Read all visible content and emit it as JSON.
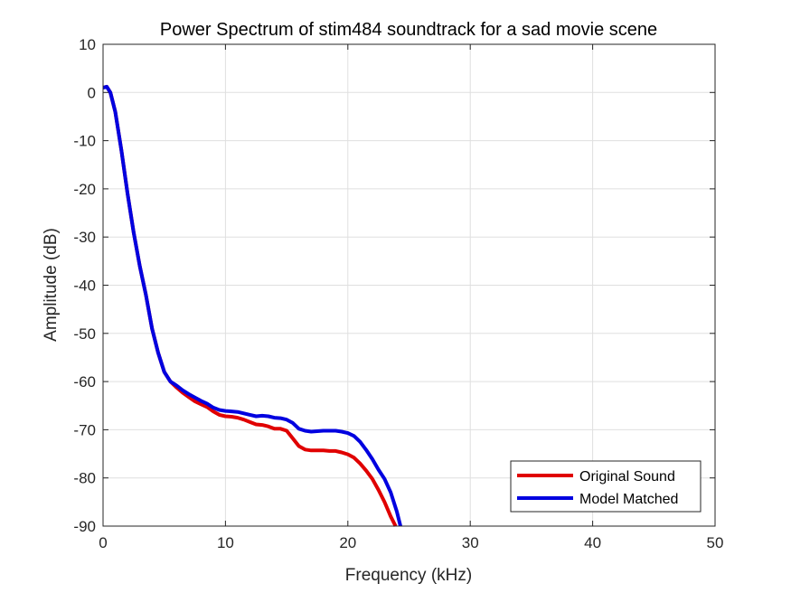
{
  "chart_data": {
    "type": "line",
    "title": "Power Spectrum of stim484 soundtrack for a sad movie scene",
    "xlabel": "Frequency (kHz)",
    "ylabel": "Amplitude (dB)",
    "xlim": [
      0,
      50
    ],
    "ylim": [
      -90,
      10
    ],
    "xticks": [
      0,
      10,
      20,
      30,
      40,
      50
    ],
    "yticks": [
      10,
      0,
      -10,
      -20,
      -30,
      -40,
      -50,
      -60,
      -70,
      -80,
      -90
    ],
    "grid": true,
    "legend_position": "bottom-right",
    "series": [
      {
        "name": "Original Sound",
        "color": "#e00000",
        "x": [
          0,
          0.3,
          0.6,
          1.0,
          1.5,
          2.0,
          2.5,
          3.0,
          3.5,
          4.0,
          4.5,
          5.0,
          5.5,
          6.0,
          6.5,
          7.0,
          7.5,
          8.0,
          8.5,
          9.0,
          9.5,
          10.0,
          10.5,
          11.0,
          11.5,
          12.0,
          12.5,
          13.0,
          13.5,
          14.0,
          14.5,
          15.0,
          15.5,
          16.0,
          16.5,
          17.0,
          17.5,
          18.0,
          18.5,
          19.0,
          19.5,
          20.0,
          20.5,
          21.0,
          21.5,
          22.0,
          22.5,
          23.0,
          23.5,
          23.9
        ],
        "y": [
          1.0,
          1.2,
          0,
          -4,
          -12,
          -21,
          -29,
          -36,
          -42,
          -49,
          -54,
          -58,
          -60,
          -61.2,
          -62.3,
          -63.2,
          -64.1,
          -64.7,
          -65.3,
          -66.2,
          -66.9,
          -67.2,
          -67.3,
          -67.5,
          -67.9,
          -68.4,
          -68.9,
          -69.0,
          -69.3,
          -69.8,
          -69.8,
          -70.2,
          -71.8,
          -73.4,
          -74.1,
          -74.3,
          -74.3,
          -74.3,
          -74.4,
          -74.4,
          -74.7,
          -75.1,
          -75.8,
          -77.0,
          -78.5,
          -80.2,
          -82.5,
          -85.0,
          -88.0,
          -90.0
        ]
      },
      {
        "name": "Model Matched",
        "color": "#0000e0",
        "x": [
          0,
          0.3,
          0.6,
          1.0,
          1.5,
          2.0,
          2.5,
          3.0,
          3.5,
          4.0,
          4.5,
          5.0,
          5.5,
          6.0,
          6.5,
          7.0,
          7.5,
          8.0,
          8.5,
          9.0,
          9.5,
          10.0,
          10.5,
          11.0,
          11.5,
          12.0,
          12.5,
          13.0,
          13.5,
          14.0,
          14.5,
          15.0,
          15.5,
          16.0,
          16.5,
          17.0,
          17.5,
          18.0,
          18.5,
          19.0,
          19.5,
          20.0,
          20.5,
          21.0,
          21.5,
          22.0,
          22.5,
          23.0,
          23.5,
          24.0,
          24.3
        ],
        "y": [
          1.0,
          1.2,
          0,
          -4,
          -12,
          -21,
          -29,
          -36,
          -42,
          -49,
          -54,
          -58,
          -60,
          -60.8,
          -61.8,
          -62.6,
          -63.3,
          -64.0,
          -64.6,
          -65.4,
          -65.9,
          -66.1,
          -66.2,
          -66.3,
          -66.6,
          -66.9,
          -67.2,
          -67.1,
          -67.2,
          -67.5,
          -67.6,
          -67.9,
          -68.6,
          -69.8,
          -70.2,
          -70.4,
          -70.3,
          -70.2,
          -70.2,
          -70.2,
          -70.4,
          -70.7,
          -71.3,
          -72.5,
          -74.2,
          -76.1,
          -78.3,
          -80.2,
          -83.0,
          -87.0,
          -90.0
        ]
      }
    ]
  }
}
